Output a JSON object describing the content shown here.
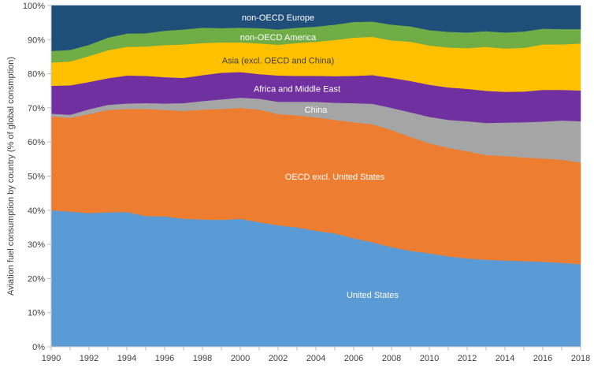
{
  "chart_data": {
    "type": "area",
    "stacked": true,
    "ylabel": "Aviation fuel consumption by country (% of global consmption)",
    "xlabel": "",
    "x": [
      1990,
      1991,
      1992,
      1993,
      1994,
      1995,
      1996,
      1997,
      1998,
      1999,
      2000,
      2001,
      2002,
      2003,
      2004,
      2005,
      2006,
      2007,
      2008,
      2009,
      2010,
      2011,
      2012,
      2013,
      2014,
      2015,
      2016,
      2017,
      2018
    ],
    "xticks": [
      "1990",
      "1992",
      "1994",
      "1996",
      "1998",
      "2000",
      "2002",
      "2004",
      "2006",
      "2008",
      "2010",
      "2012",
      "2014",
      "2016",
      "2018"
    ],
    "yticks": [
      "0%",
      "10%",
      "20%",
      "30%",
      "40%",
      "50%",
      "60%",
      "70%",
      "80%",
      "90%",
      "100%"
    ],
    "ylim": [
      0,
      100
    ],
    "series": [
      {
        "name": "United States",
        "color": "#5b9bd5",
        "label_color": "#ffffff",
        "values": [
          40.0,
          39.6,
          39.2,
          39.4,
          39.5,
          38.3,
          38.2,
          37.5,
          37.3,
          37.2,
          37.5,
          36.5,
          35.6,
          35.0,
          34.0,
          33.2,
          31.8,
          30.6,
          29.2,
          28.1,
          27.4,
          26.5,
          25.9,
          25.5,
          25.3,
          25.1,
          24.9,
          24.6,
          24.2
        ]
      },
      {
        "name": "OECD excl. United States",
        "color": "#ed7d31",
        "label_color": "#ffffff",
        "values": [
          27.5,
          27.5,
          29.0,
          30.0,
          30.2,
          31.4,
          31.2,
          31.6,
          32.2,
          32.5,
          32.5,
          33.0,
          32.6,
          32.8,
          33.2,
          33.3,
          34.0,
          34.6,
          34.3,
          33.4,
          32.2,
          31.8,
          31.4,
          30.7,
          30.6,
          30.4,
          30.3,
          30.2,
          29.8
        ]
      },
      {
        "name": "China",
        "color": "#a5a5a5",
        "label_color": "#ffffff",
        "values": [
          0.8,
          0.9,
          1.4,
          1.5,
          1.6,
          1.7,
          1.9,
          2.3,
          2.5,
          2.8,
          3.0,
          3.2,
          3.6,
          4.0,
          4.6,
          5.0,
          5.6,
          6.0,
          6.5,
          7.2,
          7.8,
          8.2,
          8.8,
          9.4,
          9.8,
          10.3,
          10.8,
          11.5,
          12.1
        ]
      },
      {
        "name": "Africa and Middle East",
        "color": "#7030a0",
        "label_color": "#ffffff",
        "values": [
          8.2,
          8.6,
          8.0,
          7.8,
          8.2,
          8.0,
          7.7,
          7.4,
          7.6,
          7.8,
          7.5,
          7.2,
          7.7,
          7.6,
          7.6,
          7.8,
          8.0,
          8.4,
          8.8,
          9.2,
          9.4,
          9.5,
          9.5,
          9.4,
          9.0,
          9.0,
          9.3,
          9.0,
          9.0
        ]
      },
      {
        "name": "Asia (excl. OECD and China)",
        "color": "#ffc000",
        "label_color": "#404040",
        "values": [
          6.8,
          7.0,
          7.6,
          8.2,
          8.4,
          8.6,
          9.4,
          9.8,
          9.4,
          8.9,
          8.7,
          9.0,
          9.0,
          9.6,
          10.0,
          10.6,
          11.2,
          11.2,
          11.0,
          11.5,
          11.5,
          11.7,
          11.9,
          12.9,
          12.7,
          12.8,
          13.3,
          13.3,
          13.8
        ]
      },
      {
        "name": "non-OECD America",
        "color": "#70ad47",
        "label_color": "#ffffff",
        "values": [
          3.4,
          3.4,
          3.3,
          3.7,
          3.9,
          3.9,
          4.2,
          4.4,
          4.5,
          4.2,
          4.3,
          4.5,
          4.5,
          4.5,
          4.4,
          4.5,
          4.6,
          4.5,
          4.6,
          4.5,
          4.5,
          4.6,
          4.6,
          4.6,
          4.7,
          4.8,
          4.6,
          4.5,
          4.2
        ]
      },
      {
        "name": "non-OECD Europe",
        "color": "#1f4e79",
        "label_color": "#ffffff",
        "values": [
          13.3,
          13.0,
          11.5,
          9.4,
          8.2,
          8.1,
          7.4,
          7.0,
          6.5,
          6.6,
          6.5,
          6.6,
          7.0,
          6.5,
          6.2,
          5.6,
          4.8,
          4.7,
          5.6,
          6.1,
          7.2,
          7.7,
          7.9,
          7.5,
          7.9,
          7.6,
          6.8,
          6.9,
          6.9
        ]
      }
    ]
  }
}
